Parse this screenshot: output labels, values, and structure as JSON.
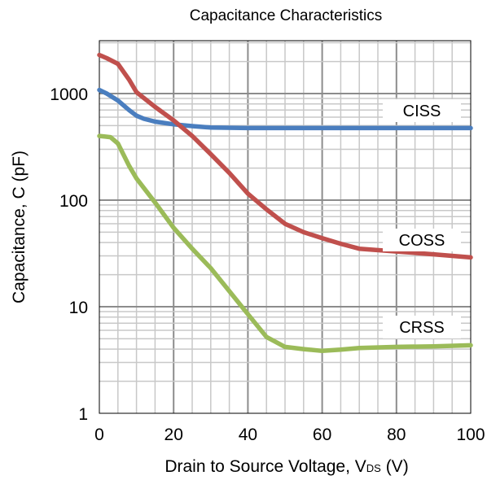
{
  "chart_data": {
    "type": "line",
    "title": "Capacitance Characteristics",
    "xlabel": "Drain to Source Voltage, V",
    "xlabel_sub": "DS",
    "xlabel_unit": " (V)",
    "ylabel": "Capacitance, C (pF)",
    "xlim": [
      0,
      100
    ],
    "ylim": [
      1,
      3000
    ],
    "yscale": "log",
    "grid": true,
    "x_ticks": [
      0,
      20,
      40,
      60,
      80,
      100
    ],
    "x_tick_labels": [
      "0",
      "20",
      "40",
      "60",
      "80",
      "100"
    ],
    "y_ticks": [
      1,
      10,
      100,
      1000
    ],
    "y_tick_labels": [
      "1",
      "10",
      "100",
      "1000"
    ],
    "series": [
      {
        "name": "CISS",
        "color": "#4a7ebf",
        "x": [
          0,
          2,
          5,
          8,
          10,
          12,
          15,
          20,
          25,
          30,
          40,
          50,
          60,
          70,
          80,
          90,
          100
        ],
        "y": [
          1080,
          1000,
          860,
          700,
          620,
          580,
          545,
          515,
          495,
          480,
          475,
          475,
          475,
          475,
          475,
          475,
          475
        ]
      },
      {
        "name": "COSS",
        "color": "#c0504d",
        "x": [
          0,
          2,
          5,
          8,
          10,
          15,
          20,
          25,
          30,
          35,
          40,
          45,
          50,
          55,
          60,
          65,
          70,
          80,
          90,
          100
        ],
        "y": [
          2300,
          2150,
          1900,
          1350,
          1030,
          750,
          560,
          400,
          270,
          180,
          115,
          82,
          60,
          50,
          44,
          39,
          35,
          33,
          31,
          29
        ]
      },
      {
        "name": "CRSS",
        "color": "#9bbb59",
        "x": [
          0,
          3,
          5,
          8,
          10,
          15,
          20,
          25,
          30,
          35,
          40,
          45,
          50,
          55,
          60,
          65,
          70,
          80,
          90,
          100
        ],
        "y": [
          400,
          390,
          340,
          210,
          160,
          95,
          55,
          35,
          23,
          14,
          8.5,
          5.2,
          4.2,
          4.0,
          3.85,
          3.95,
          4.1,
          4.2,
          4.25,
          4.35
        ]
      }
    ]
  }
}
